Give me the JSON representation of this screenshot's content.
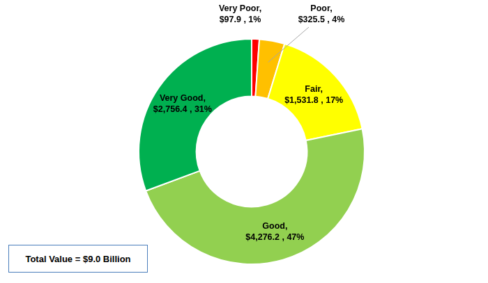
{
  "chart_data": {
    "type": "doughnut",
    "categories": [
      "Very Poor,",
      "Poor,",
      "Fair,",
      "Good,",
      "Very Good,"
    ],
    "values": [
      97.9,
      325.5,
      1531.8,
      4276.2,
      2756.4
    ],
    "value_labels": [
      "$97.9 , 1%",
      "$325.5 , 4%",
      "$1,531.8 , 17%",
      "$4,276.2 , 47%",
      "$2,756.4 , 31%"
    ],
    "colors": [
      "#ff0000",
      "#ffc000",
      "#ffff00",
      "#92d050",
      "#00b050"
    ],
    "data_labels": true,
    "annotation": "Total Value = $9.0 Billion"
  }
}
